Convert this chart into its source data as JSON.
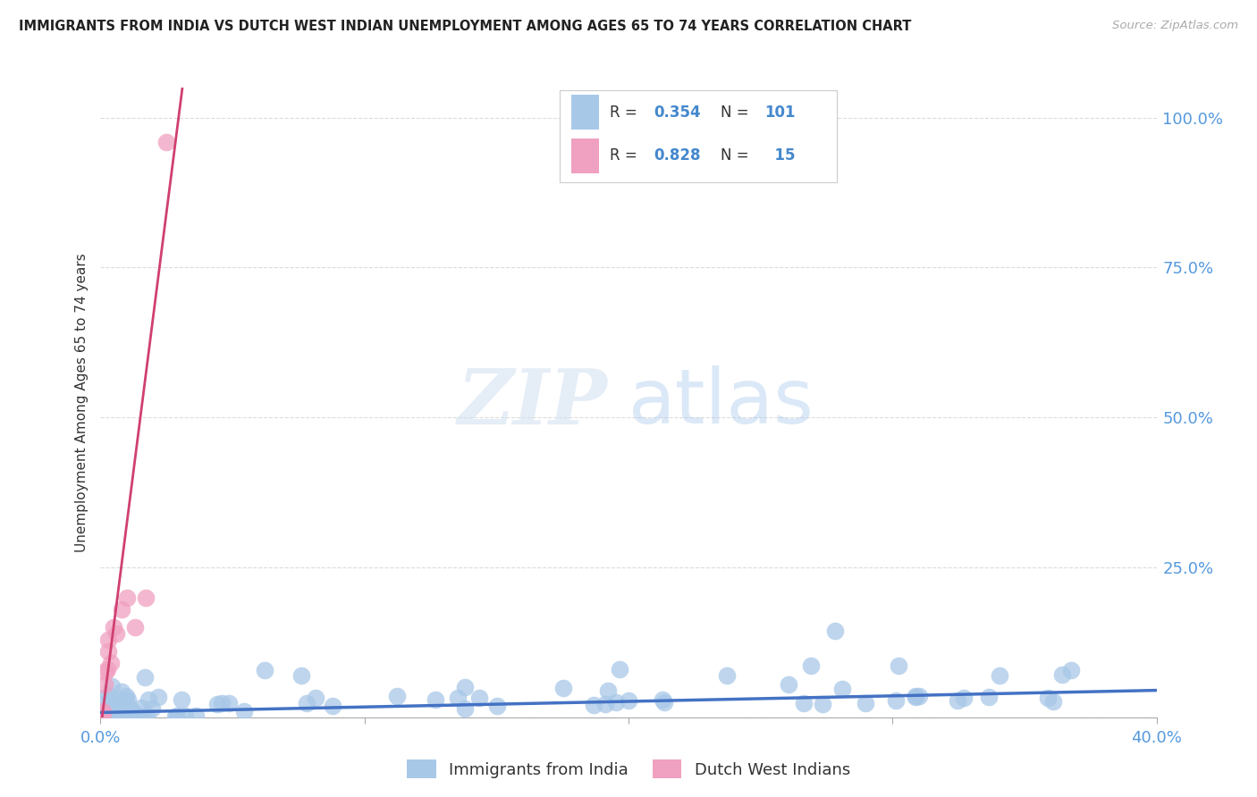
{
  "title": "IMMIGRANTS FROM INDIA VS DUTCH WEST INDIAN UNEMPLOYMENT AMONG AGES 65 TO 74 YEARS CORRELATION CHART",
  "source": "Source: ZipAtlas.com",
  "ylabel": "Unemployment Among Ages 65 to 74 years",
  "xlim": [
    0.0,
    0.4
  ],
  "ylim": [
    0.0,
    1.05
  ],
  "india_R": 0.354,
  "india_N": 101,
  "dwi_R": 0.828,
  "dwi_N": 15,
  "india_color": "#a8c8e8",
  "dwi_color": "#f0a0c0",
  "india_line_color": "#4472c4",
  "dwi_line_color": "#d04070",
  "legend_label_india": "Immigrants from India",
  "legend_label_dwi": "Dutch West Indians",
  "watermark_zip": "ZIP",
  "watermark_atlas": "atlas",
  "background_color": "#ffffff",
  "dwi_line_x0": 0.0,
  "dwi_line_y0": -0.02,
  "dwi_line_x1": 0.031,
  "dwi_line_y1": 1.05,
  "india_line_x0": 0.0,
  "india_line_y0": 0.008,
  "india_line_x1": 0.4,
  "india_line_y1": 0.045
}
